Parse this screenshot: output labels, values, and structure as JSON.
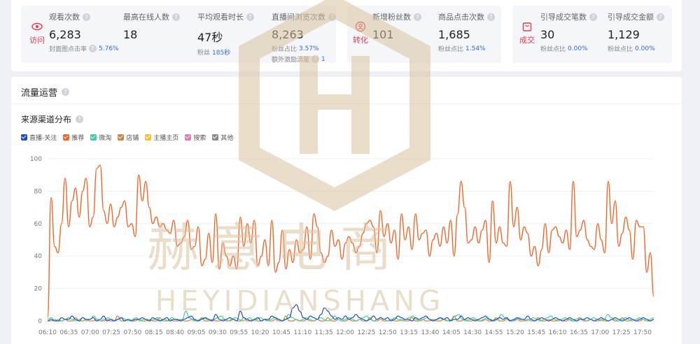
{
  "groups": [
    {
      "tag": "访问",
      "color": "#e8384f",
      "metrics": [
        {
          "label": "观看次数",
          "value": "6,283",
          "sub_label": "封面图点击率",
          "sub_value": "5.76%"
        },
        {
          "label": "最高在线人数",
          "value": "18"
        },
        {
          "label": "平均观看时长",
          "value": "47秒",
          "sub_label": "粉丝",
          "sub_value": "185秒"
        },
        {
          "label": "直播间浏览次数",
          "value": "8,263",
          "sub_label": "粉丝占比",
          "sub_value": "3.57%",
          "sub2_label": "额外激励流量",
          "sub2_value": "1"
        }
      ]
    },
    {
      "tag": "转化",
      "color": "#e8384f",
      "metrics": [
        {
          "label": "新增粉丝数",
          "value": "101"
        },
        {
          "label": "商品点击次数",
          "value": "1,685",
          "sub_label": "粉丝点比",
          "sub_value": "1.54%"
        }
      ]
    },
    {
      "tag": "成交",
      "color": "#e8384f",
      "metrics": [
        {
          "label": "引导成交笔数",
          "value": "30",
          "sub_label": "粉丝点比",
          "sub_value": "0.00%"
        },
        {
          "label": "引导成交金额",
          "value": "1,129",
          "sub_label": "粉丝点比",
          "sub_value": "0.00%"
        }
      ]
    }
  ],
  "traffic": {
    "title": "流量运营",
    "subtitle": "来源渠道分布"
  },
  "watermark": {
    "cn": "赫意电商",
    "en": "HEYIDIANSHANG"
  },
  "chart_data": {
    "type": "line",
    "ylim": [
      0,
      100
    ],
    "yticks": [
      0,
      20,
      40,
      60,
      80,
      100
    ],
    "xticks": [
      "06:10",
      "06:35",
      "07:00",
      "07:25",
      "07:50",
      "08:15",
      "08:40",
      "09:05",
      "09:30",
      "09:55",
      "10:20",
      "10:45",
      "11:10",
      "11:35",
      "12:00",
      "12:25",
      "12:50",
      "13:15",
      "13:40",
      "14:05",
      "14:30",
      "14:55",
      "15:20",
      "15:45",
      "16:10",
      "16:35",
      "17:00",
      "17:25",
      "17:50"
    ],
    "legend": [
      {
        "name": "直播-关注",
        "color": "#1f4fc4"
      },
      {
        "name": "推荐",
        "color": "#f0662a"
      },
      {
        "name": "微淘",
        "color": "#3fcf9a"
      },
      {
        "name": "店铺",
        "color": "#c98545"
      },
      {
        "name": "主播主页",
        "color": "#f2c230"
      },
      {
        "name": "搜索",
        "color": "#e37ab0"
      },
      {
        "name": "其他",
        "color": "#888888"
      }
    ],
    "series": [
      {
        "name": "推荐",
        "color": "#f0662a",
        "values": [
          2,
          76,
          46,
          42,
          60,
          88,
          58,
          74,
          82,
          64,
          80,
          88,
          58,
          64,
          94,
          96,
          68,
          60,
          72,
          58,
          64,
          70,
          74,
          58,
          60,
          52,
          90,
          74,
          86,
          70,
          60,
          64,
          58,
          60,
          56,
          54,
          62,
          46,
          48,
          52,
          62,
          44,
          46,
          58,
          34,
          38,
          54,
          36,
          66,
          32,
          48,
          40,
          34,
          40,
          32,
          64,
          46,
          60,
          48,
          62,
          34,
          40,
          50,
          34,
          62,
          30,
          36,
          56,
          32,
          44,
          36,
          50,
          42,
          44,
          58,
          38,
          66,
          58,
          42,
          36,
          40,
          56,
          46,
          50,
          38,
          48,
          52,
          48,
          42,
          46,
          54,
          60,
          62,
          58,
          42,
          68,
          52,
          60,
          48,
          56,
          38,
          66,
          50,
          58,
          44,
          66,
          50,
          54,
          56,
          40,
          50,
          54,
          46,
          58,
          48,
          62,
          40,
          66,
          86,
          70,
          48,
          50,
          58,
          48,
          56,
          62,
          36,
          74,
          48,
          58,
          48,
          46,
          86,
          58,
          70,
          50,
          58,
          54,
          40,
          46,
          34,
          44,
          60,
          42,
          56,
          58,
          52,
          48,
          56,
          44,
          86,
          52,
          56,
          62,
          50,
          46,
          44,
          60,
          50,
          42,
          86,
          60,
          74,
          46,
          54,
          64,
          56,
          38,
          62,
          58,
          58,
          30,
          42,
          15
        ]
      },
      {
        "name": "直播-关注",
        "color": "#1f4fc4",
        "values": [
          0,
          1,
          0,
          0,
          2,
          1,
          1,
          3,
          1,
          0,
          2,
          1,
          1,
          2,
          0,
          1,
          3,
          0,
          1,
          0,
          1,
          2,
          0,
          1,
          0,
          1,
          1,
          2,
          1,
          0,
          2,
          1,
          0,
          1,
          2,
          0,
          1,
          1,
          0,
          1,
          2,
          3,
          1,
          0,
          1,
          2,
          1,
          0,
          4,
          1,
          0,
          1,
          2,
          1,
          0,
          6,
          2,
          1,
          0,
          1,
          2,
          0,
          1,
          1,
          3,
          2,
          1,
          0,
          1,
          2,
          8,
          10,
          6,
          2,
          1,
          3,
          2,
          1,
          4,
          8,
          6,
          3,
          1,
          2,
          1,
          3,
          1,
          2,
          4,
          2,
          1,
          0,
          1,
          3,
          1,
          2,
          1,
          2,
          0,
          1,
          3,
          2,
          1,
          1,
          0,
          2,
          1,
          2,
          3,
          1,
          0,
          1,
          2,
          1,
          2,
          0,
          1,
          1,
          3,
          1,
          2,
          1,
          0,
          1,
          2,
          3,
          1,
          0,
          1,
          2,
          1,
          2,
          0,
          1,
          2,
          1,
          1,
          3,
          1,
          0,
          1,
          2,
          1,
          0,
          1,
          2,
          1,
          0,
          1,
          2,
          1,
          0,
          1,
          1,
          2,
          1,
          0,
          1,
          2,
          1,
          0,
          1,
          2,
          1,
          0,
          1,
          2,
          1,
          0,
          1,
          2,
          1,
          0,
          1
        ]
      },
      {
        "name": "微淘",
        "color": "#3fcf9a",
        "values": [
          1,
          2,
          0,
          1,
          0,
          1,
          2,
          1,
          0,
          1,
          2,
          0,
          1,
          3,
          1,
          0,
          1,
          2,
          1,
          0,
          1,
          2,
          1,
          0,
          1,
          2,
          0,
          1,
          1,
          0,
          1,
          2,
          0,
          1,
          0,
          2,
          1,
          0,
          1,
          6,
          2,
          1,
          0,
          1,
          2,
          1,
          0,
          1,
          2,
          3,
          1,
          0,
          1,
          2,
          1,
          0,
          1,
          2,
          0,
          1,
          2,
          1,
          0,
          1,
          2,
          1,
          0,
          1,
          4,
          2,
          1,
          0,
          1,
          2,
          1,
          0,
          1,
          2,
          1,
          0,
          1,
          3,
          1,
          0,
          1,
          2,
          1,
          0,
          1,
          2,
          3,
          1,
          0,
          1,
          2,
          1,
          0,
          1,
          2,
          1,
          0,
          1,
          2,
          3,
          1,
          0,
          1,
          2,
          1,
          0,
          1,
          2,
          1,
          0,
          1,
          3,
          4,
          1,
          0,
          1,
          2,
          1,
          0,
          1,
          2,
          1,
          0,
          1,
          4,
          2,
          1,
          0,
          1,
          2,
          1,
          0,
          1,
          2,
          1,
          0,
          1,
          2,
          3,
          1,
          0,
          1,
          2,
          1,
          0,
          1,
          2,
          1,
          0,
          1,
          2,
          1,
          0,
          1,
          4,
          2,
          1,
          0,
          1,
          2,
          1,
          0,
          1,
          2,
          1,
          0,
          1,
          2
        ]
      },
      {
        "name": "店铺",
        "color": "#c98545",
        "values": [
          0,
          0,
          1,
          0,
          0,
          1,
          0,
          0,
          2,
          0,
          0,
          1,
          0,
          0,
          1,
          0,
          0,
          1,
          0,
          0,
          3,
          0,
          0,
          1,
          0,
          0,
          1,
          0,
          0,
          1,
          0,
          0,
          2,
          0,
          0,
          1,
          0,
          0,
          1,
          0,
          0,
          1,
          0,
          0,
          2,
          0,
          0,
          1,
          0,
          0,
          1,
          0,
          0,
          1,
          0,
          0,
          2,
          0,
          0,
          1,
          0,
          0,
          1,
          0,
          0,
          1,
          0,
          0,
          3,
          0,
          0,
          1,
          0,
          0,
          1,
          0,
          0,
          1,
          0,
          0,
          2,
          0,
          0,
          1,
          0,
          0,
          1,
          0,
          0,
          1,
          0,
          0,
          2,
          0,
          0,
          1,
          0,
          0,
          1,
          0,
          0,
          1,
          0,
          0,
          2,
          0,
          0,
          1,
          0,
          0,
          1,
          0,
          0,
          1,
          0,
          0,
          3,
          0,
          0,
          1,
          0,
          0,
          1,
          0,
          0,
          1,
          0,
          0,
          2,
          0,
          0,
          1,
          0,
          0,
          1,
          0,
          0,
          1,
          0,
          0,
          2,
          0,
          0,
          1,
          0,
          0,
          1,
          0,
          0,
          1,
          0,
          0,
          2,
          0,
          0,
          1,
          0,
          0,
          1,
          0,
          0,
          1,
          0,
          0,
          2,
          0,
          0,
          1,
          0,
          0,
          1,
          0,
          0,
          1
        ]
      }
    ]
  }
}
